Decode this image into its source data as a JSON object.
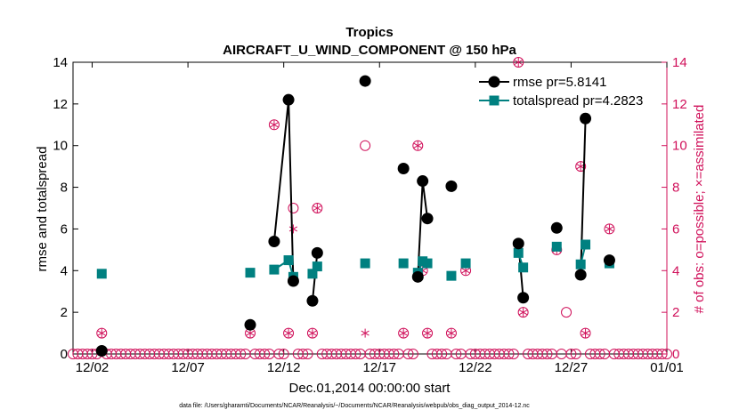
{
  "chart_data": {
    "type": "line",
    "title": "Tropics",
    "subtitle": "AIRCRAFT_U_WIND_COMPONENT @ 150 hPa",
    "xlabel": "Dec.01,2014 00:00:00 start",
    "ylabel_left": "rmse and totalspread",
    "ylabel_right": "# of obs: o=possible; ×=assimilated",
    "footnote": "data file: /Users/gharamti/Documents/NCAR/Reanalysis/~/Documents/NCAR/Reanalysis/webpub/obs_diag_output_2014-12.nc",
    "xlim": [
      1,
      32
    ],
    "ylim": [
      0,
      14
    ],
    "xtick_values": [
      2,
      7,
      12,
      17,
      22,
      27,
      32
    ],
    "xtick_labels": [
      "12/02",
      "12/07",
      "12/12",
      "12/17",
      "12/22",
      "12/27",
      "01/01"
    ],
    "ytick_labels": [
      "0",
      "2",
      "4",
      "6",
      "8",
      "10",
      "12",
      "14"
    ],
    "legend": {
      "location": "top-right",
      "entries": [
        "rmse pr=5.8141",
        "totalspread pr=4.2823"
      ]
    },
    "colors": {
      "rmse": "#000000",
      "totalspread": "#008080",
      "obs": "#d0105a"
    },
    "series": [
      {
        "name": "rmse",
        "points": [
          [
            2.5,
            0.15
          ],
          [
            10.25,
            1.4
          ],
          [
            11.5,
            5.4
          ],
          [
            12.25,
            12.2
          ],
          [
            12.5,
            3.5
          ],
          [
            13.5,
            2.55
          ],
          [
            13.75,
            4.85
          ],
          [
            16.25,
            13.1
          ],
          [
            18.25,
            8.9
          ],
          [
            19.0,
            3.7
          ],
          [
            19.25,
            8.3
          ],
          [
            19.5,
            6.5
          ],
          [
            20.75,
            8.05
          ],
          [
            24.25,
            5.3
          ],
          [
            24.5,
            2.7
          ],
          [
            26.25,
            6.05
          ],
          [
            27.5,
            3.8
          ],
          [
            27.75,
            11.3
          ],
          [
            29.0,
            4.5
          ]
        ],
        "segments": [
          [
            [
              11.5,
              5.4
            ],
            [
              12.25,
              12.2
            ],
            [
              12.5,
              3.5
            ]
          ],
          [
            [
              13.5,
              2.55
            ],
            [
              13.75,
              4.85
            ]
          ],
          [
            [
              19.0,
              3.7
            ],
            [
              19.25,
              8.3
            ],
            [
              19.5,
              6.5
            ]
          ],
          [
            [
              24.25,
              5.3
            ],
            [
              24.5,
              2.7
            ]
          ],
          [
            [
              27.5,
              3.8
            ],
            [
              27.75,
              11.3
            ]
          ]
        ]
      },
      {
        "name": "totalspread",
        "points": [
          [
            2.5,
            3.85
          ],
          [
            10.25,
            3.9
          ],
          [
            11.5,
            4.05
          ],
          [
            12.25,
            4.5
          ],
          [
            12.5,
            3.7
          ],
          [
            13.5,
            3.85
          ],
          [
            13.75,
            4.2
          ],
          [
            16.25,
            4.35
          ],
          [
            18.25,
            4.35
          ],
          [
            19.0,
            3.9
          ],
          [
            19.25,
            4.45
          ],
          [
            19.5,
            4.35
          ],
          [
            20.75,
            3.75
          ],
          [
            21.5,
            4.35
          ],
          [
            24.25,
            4.85
          ],
          [
            24.5,
            4.15
          ],
          [
            26.25,
            5.15
          ],
          [
            27.5,
            4.3
          ],
          [
            27.75,
            5.25
          ],
          [
            29.0,
            4.35
          ]
        ],
        "segments": [
          [
            [
              11.5,
              4.05
            ],
            [
              12.25,
              4.5
            ],
            [
              12.5,
              3.7
            ]
          ],
          [
            [
              13.5,
              3.85
            ],
            [
              13.75,
              4.2
            ]
          ],
          [
            [
              19.0,
              3.9
            ],
            [
              19.25,
              4.45
            ],
            [
              19.5,
              4.35
            ]
          ],
          [
            [
              24.25,
              4.85
            ],
            [
              24.5,
              4.15
            ]
          ],
          [
            [
              27.5,
              4.3
            ],
            [
              27.75,
              5.25
            ]
          ]
        ]
      }
    ],
    "obs_possible": [
      [
        2.5,
        1
      ],
      [
        10.25,
        1
      ],
      [
        11.5,
        11
      ],
      [
        12.25,
        1
      ],
      [
        12.5,
        7
      ],
      [
        13.5,
        1
      ],
      [
        13.75,
        7
      ],
      [
        16.25,
        10
      ],
      [
        18.25,
        1
      ],
      [
        19.0,
        10
      ],
      [
        19.25,
        4
      ],
      [
        19.5,
        1
      ],
      [
        20.75,
        1
      ],
      [
        21.5,
        4
      ],
      [
        24.25,
        14
      ],
      [
        24.5,
        2
      ],
      [
        26.25,
        5
      ],
      [
        26.75,
        2
      ],
      [
        27.5,
        9
      ],
      [
        27.75,
        1
      ],
      [
        29.0,
        6
      ]
    ],
    "obs_assimilated": [
      [
        2.5,
        1
      ],
      [
        10.25,
        1
      ],
      [
        11.5,
        11
      ],
      [
        12.25,
        1
      ],
      [
        12.5,
        6
      ],
      [
        13.5,
        1
      ],
      [
        13.75,
        7
      ],
      [
        16.25,
        1
      ],
      [
        18.25,
        1
      ],
      [
        19.0,
        10
      ],
      [
        19.25,
        4
      ],
      [
        19.5,
        1
      ],
      [
        20.75,
        1
      ],
      [
        21.5,
        4
      ],
      [
        24.25,
        14
      ],
      [
        24.5,
        2
      ],
      [
        26.25,
        5
      ],
      [
        27.5,
        9
      ],
      [
        27.75,
        1
      ],
      [
        29.0,
        6
      ]
    ]
  }
}
